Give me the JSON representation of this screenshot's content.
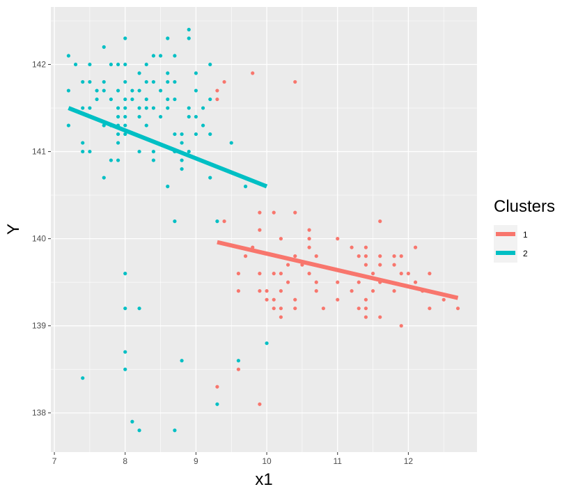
{
  "chart_data": {
    "type": "scatter",
    "xlabel": "x1",
    "ylabel": "Y",
    "xlim": [
      6.95,
      12.97
    ],
    "ylim": [
      137.55,
      142.66
    ],
    "x_ticks": [
      7,
      8,
      9,
      10,
      11,
      12
    ],
    "y_ticks": [
      138,
      139,
      140,
      141,
      142
    ],
    "grid": true,
    "legend": {
      "title": "Clusters",
      "placement": "right",
      "entries": [
        "1",
        "2"
      ]
    },
    "colors": {
      "1": "#f8766d",
      "2": "#00bfc4",
      "panel": "#ebebeb",
      "grid": "#ffffff"
    },
    "series": [
      {
        "name": "1",
        "color": "#f8766d",
        "points": [
          [
            9.3,
            141.7
          ],
          [
            9.3,
            141.6
          ],
          [
            9.4,
            141.8
          ],
          [
            9.8,
            141.9
          ],
          [
            10.4,
            141.8
          ],
          [
            9.4,
            140.2
          ],
          [
            9.9,
            140.3
          ],
          [
            10.1,
            140.3
          ],
          [
            10.4,
            140.3
          ],
          [
            11.6,
            140.2
          ],
          [
            9.9,
            140.1
          ],
          [
            10.6,
            140.1
          ],
          [
            10.2,
            140.0
          ],
          [
            10.6,
            140.0
          ],
          [
            11.0,
            140.0
          ],
          [
            9.8,
            139.9
          ],
          [
            10.6,
            139.9
          ],
          [
            11.2,
            139.9
          ],
          [
            11.4,
            139.9
          ],
          [
            12.1,
            139.9
          ],
          [
            9.7,
            139.8
          ],
          [
            10.4,
            139.8
          ],
          [
            10.7,
            139.8
          ],
          [
            11.3,
            139.8
          ],
          [
            11.4,
            139.8
          ],
          [
            11.6,
            139.8
          ],
          [
            11.8,
            139.8
          ],
          [
            11.9,
            139.8
          ],
          [
            10.3,
            139.7
          ],
          [
            10.5,
            139.7
          ],
          [
            11.4,
            139.7
          ],
          [
            11.6,
            139.7
          ],
          [
            11.8,
            139.7
          ],
          [
            9.6,
            139.6
          ],
          [
            9.9,
            139.6
          ],
          [
            10.1,
            139.6
          ],
          [
            10.2,
            139.6
          ],
          [
            10.6,
            139.6
          ],
          [
            11.2,
            139.6
          ],
          [
            11.5,
            139.6
          ],
          [
            11.9,
            139.6
          ],
          [
            12.0,
            139.6
          ],
          [
            12.3,
            139.6
          ],
          [
            10.3,
            139.5
          ],
          [
            10.7,
            139.5
          ],
          [
            11.0,
            139.5
          ],
          [
            11.3,
            139.5
          ],
          [
            11.6,
            139.5
          ],
          [
            12.1,
            139.5
          ],
          [
            9.6,
            139.4
          ],
          [
            9.9,
            139.4
          ],
          [
            10.0,
            139.4
          ],
          [
            10.2,
            139.4
          ],
          [
            10.7,
            139.4
          ],
          [
            11.2,
            139.4
          ],
          [
            11.5,
            139.4
          ],
          [
            11.8,
            139.4
          ],
          [
            12.2,
            139.4
          ],
          [
            10.0,
            139.3
          ],
          [
            10.1,
            139.3
          ],
          [
            10.4,
            139.3
          ],
          [
            11.0,
            139.3
          ],
          [
            11.4,
            139.3
          ],
          [
            12.5,
            139.3
          ],
          [
            10.1,
            139.2
          ],
          [
            10.2,
            139.2
          ],
          [
            10.4,
            139.2
          ],
          [
            10.8,
            139.2
          ],
          [
            11.3,
            139.2
          ],
          [
            11.4,
            139.2
          ],
          [
            12.3,
            139.2
          ],
          [
            12.7,
            139.2
          ],
          [
            10.2,
            139.1
          ],
          [
            11.4,
            139.1
          ],
          [
            11.6,
            139.1
          ],
          [
            11.9,
            139.0
          ],
          [
            9.6,
            138.5
          ],
          [
            9.3,
            138.3
          ],
          [
            9.9,
            138.1
          ]
        ],
        "fit_line": [
          [
            9.3,
            139.96
          ],
          [
            12.7,
            139.32
          ]
        ]
      },
      {
        "name": "2",
        "color": "#00bfc4",
        "points": [
          [
            8.9,
            142.4
          ],
          [
            8.9,
            142.3
          ],
          [
            8.0,
            142.3
          ],
          [
            8.6,
            142.3
          ],
          [
            7.7,
            142.2
          ],
          [
            7.2,
            142.1
          ],
          [
            8.4,
            142.1
          ],
          [
            8.5,
            142.1
          ],
          [
            8.7,
            142.1
          ],
          [
            7.3,
            142.0
          ],
          [
            7.5,
            142.0
          ],
          [
            7.8,
            142.0
          ],
          [
            7.9,
            142.0
          ],
          [
            8.0,
            142.0
          ],
          [
            8.3,
            142.0
          ],
          [
            9.2,
            142.0
          ],
          [
            8.2,
            141.9
          ],
          [
            8.6,
            141.9
          ],
          [
            9.0,
            141.9
          ],
          [
            7.4,
            141.8
          ],
          [
            7.5,
            141.8
          ],
          [
            7.7,
            141.8
          ],
          [
            8.0,
            141.8
          ],
          [
            8.3,
            141.8
          ],
          [
            8.4,
            141.8
          ],
          [
            8.6,
            141.8
          ],
          [
            8.7,
            141.8
          ],
          [
            7.2,
            141.7
          ],
          [
            7.6,
            141.7
          ],
          [
            7.7,
            141.7
          ],
          [
            7.9,
            141.7
          ],
          [
            8.1,
            141.7
          ],
          [
            8.2,
            141.7
          ],
          [
            8.5,
            141.7
          ],
          [
            9.0,
            141.7
          ],
          [
            7.6,
            141.6
          ],
          [
            7.8,
            141.6
          ],
          [
            8.0,
            141.6
          ],
          [
            8.1,
            141.6
          ],
          [
            8.3,
            141.6
          ],
          [
            8.6,
            141.6
          ],
          [
            8.7,
            141.6
          ],
          [
            9.2,
            141.6
          ],
          [
            7.4,
            141.5
          ],
          [
            7.5,
            141.5
          ],
          [
            7.9,
            141.5
          ],
          [
            8.0,
            141.5
          ],
          [
            8.2,
            141.5
          ],
          [
            8.3,
            141.5
          ],
          [
            8.4,
            141.5
          ],
          [
            8.6,
            141.5
          ],
          [
            8.9,
            141.5
          ],
          [
            9.1,
            141.5
          ],
          [
            7.9,
            141.4
          ],
          [
            8.0,
            141.4
          ],
          [
            8.2,
            141.4
          ],
          [
            8.5,
            141.4
          ],
          [
            8.9,
            141.4
          ],
          [
            9.0,
            141.4
          ],
          [
            7.2,
            141.3
          ],
          [
            7.7,
            141.3
          ],
          [
            7.8,
            141.3
          ],
          [
            7.9,
            141.3
          ],
          [
            8.0,
            141.3
          ],
          [
            8.3,
            141.3
          ],
          [
            9.1,
            141.3
          ],
          [
            7.9,
            141.2
          ],
          [
            8.0,
            141.2
          ],
          [
            8.7,
            141.2
          ],
          [
            8.8,
            141.2
          ],
          [
            9.0,
            141.2
          ],
          [
            9.2,
            141.2
          ],
          [
            7.4,
            141.1
          ],
          [
            7.9,
            141.1
          ],
          [
            8.8,
            141.1
          ],
          [
            9.5,
            141.1
          ],
          [
            7.4,
            141.0
          ],
          [
            7.5,
            141.0
          ],
          [
            8.2,
            141.0
          ],
          [
            8.4,
            141.0
          ],
          [
            8.7,
            141.0
          ],
          [
            8.9,
            141.0
          ],
          [
            7.8,
            140.9
          ],
          [
            7.9,
            140.9
          ],
          [
            8.4,
            140.9
          ],
          [
            8.8,
            140.9
          ],
          [
            8.8,
            140.8
          ],
          [
            7.7,
            140.7
          ],
          [
            9.2,
            140.7
          ],
          [
            8.6,
            140.6
          ],
          [
            9.7,
            140.6
          ],
          [
            8.7,
            140.2
          ],
          [
            9.3,
            140.2
          ],
          [
            8.0,
            139.6
          ],
          [
            8.0,
            139.2
          ],
          [
            8.2,
            139.2
          ],
          [
            10.0,
            138.8
          ],
          [
            8.0,
            138.7
          ],
          [
            8.8,
            138.6
          ],
          [
            9.6,
            138.6
          ],
          [
            8.0,
            138.5
          ],
          [
            7.4,
            138.4
          ],
          [
            9.3,
            138.1
          ],
          [
            8.1,
            137.9
          ],
          [
            8.2,
            137.8
          ],
          [
            8.7,
            137.8
          ]
        ],
        "fit_line": [
          [
            7.2,
            141.5
          ],
          [
            10.0,
            140.6
          ]
        ]
      }
    ]
  }
}
